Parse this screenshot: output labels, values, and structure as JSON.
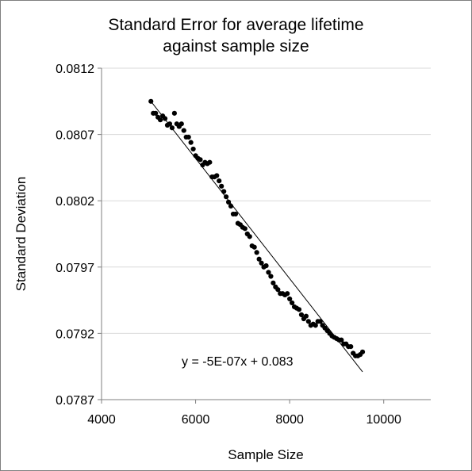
{
  "chart_data": {
    "type": "scatter",
    "title_lines": [
      "Standard Error for average lifetime",
      "against sample size"
    ],
    "xlabel": "Sample Size",
    "ylabel": "Standard Deviation",
    "xlim": [
      4000,
      11000
    ],
    "ylim": [
      0.0787,
      0.0812
    ],
    "x_ticks": [
      4000,
      6000,
      8000,
      10000
    ],
    "x_tick_labels": [
      "4000",
      "6000",
      "8000",
      "10000"
    ],
    "y_ticks": [
      0.0787,
      0.0792,
      0.0797,
      0.0802,
      0.0807,
      0.0812
    ],
    "y_tick_labels": [
      "0.0787",
      "0.0792",
      "0.0797",
      "0.0802",
      "0.0807",
      "0.0812"
    ],
    "grid": "horizontal",
    "legend": "none",
    "trendline": {
      "type": "linear",
      "slope": -5e-07,
      "intercept": 0.083,
      "x_range": [
        5050,
        9550
      ],
      "equation_label": "y = -5E-07x + 0.083",
      "endpoints": [
        [
          5050,
          0.08095
        ],
        [
          9550,
          0.07891
        ]
      ]
    },
    "colors": {
      "markers": "#000000",
      "trendline": "#000000",
      "grid": "#d9d9d9",
      "axis": "#7f7f7f"
    },
    "series": [
      {
        "x": [
          5050,
          5100,
          5150,
          5200,
          5250,
          5300,
          5350,
          5400,
          5450,
          5500,
          5550,
          5600,
          5650,
          5700,
          5750,
          5800,
          5850,
          5900,
          5950,
          6000,
          6050,
          6100,
          6150,
          6200,
          6250,
          6300,
          6350,
          6400,
          6450,
          6500,
          6550,
          6600,
          6650,
          6700,
          6750,
          6800,
          6850,
          6900,
          6950,
          7000,
          7050,
          7100,
          7150,
          7200,
          7250,
          7300,
          7350,
          7400,
          7450,
          7500,
          7550,
          7600,
          7650,
          7700,
          7750,
          7800,
          7850,
          7900,
          7950,
          8000,
          8050,
          8100,
          8150,
          8200,
          8250,
          8300,
          8350,
          8400,
          8450,
          8500,
          8550,
          8600,
          8650,
          8700,
          8750,
          8800,
          8850,
          8900,
          8950,
          9000,
          9050,
          9100,
          9150,
          9200,
          9250,
          9300,
          9350,
          9400,
          9450,
          9500,
          9550
        ],
        "y": [
          0.08095,
          0.08086,
          0.08086,
          0.08083,
          0.08081,
          0.08084,
          0.08082,
          0.08077,
          0.08078,
          0.08075,
          0.08086,
          0.08078,
          0.08076,
          0.08078,
          0.08073,
          0.08068,
          0.08068,
          0.08064,
          0.08059,
          0.08054,
          0.08052,
          0.08051,
          0.08047,
          0.08049,
          0.08048,
          0.08049,
          0.08038,
          0.08038,
          0.08039,
          0.08035,
          0.08031,
          0.08027,
          0.08023,
          0.08019,
          0.08016,
          0.0801,
          0.0801,
          0.08003,
          0.08002,
          0.08,
          0.07999,
          0.07995,
          0.07993,
          0.07986,
          0.07985,
          0.07981,
          0.07976,
          0.07973,
          0.0797,
          0.07971,
          0.07966,
          0.07963,
          0.07958,
          0.07955,
          0.07953,
          0.0795,
          0.0795,
          0.07949,
          0.0795,
          0.07946,
          0.07943,
          0.0794,
          0.07939,
          0.07938,
          0.07934,
          0.07931,
          0.07933,
          0.07929,
          0.07926,
          0.07927,
          0.07926,
          0.07929,
          0.07929,
          0.07926,
          0.07924,
          0.07922,
          0.0792,
          0.07918,
          0.07917,
          0.07916,
          0.07915,
          0.07915,
          0.07912,
          0.07912,
          0.0791,
          0.0791,
          0.07905,
          0.07903,
          0.07903,
          0.07904,
          0.07906
        ]
      }
    ]
  }
}
